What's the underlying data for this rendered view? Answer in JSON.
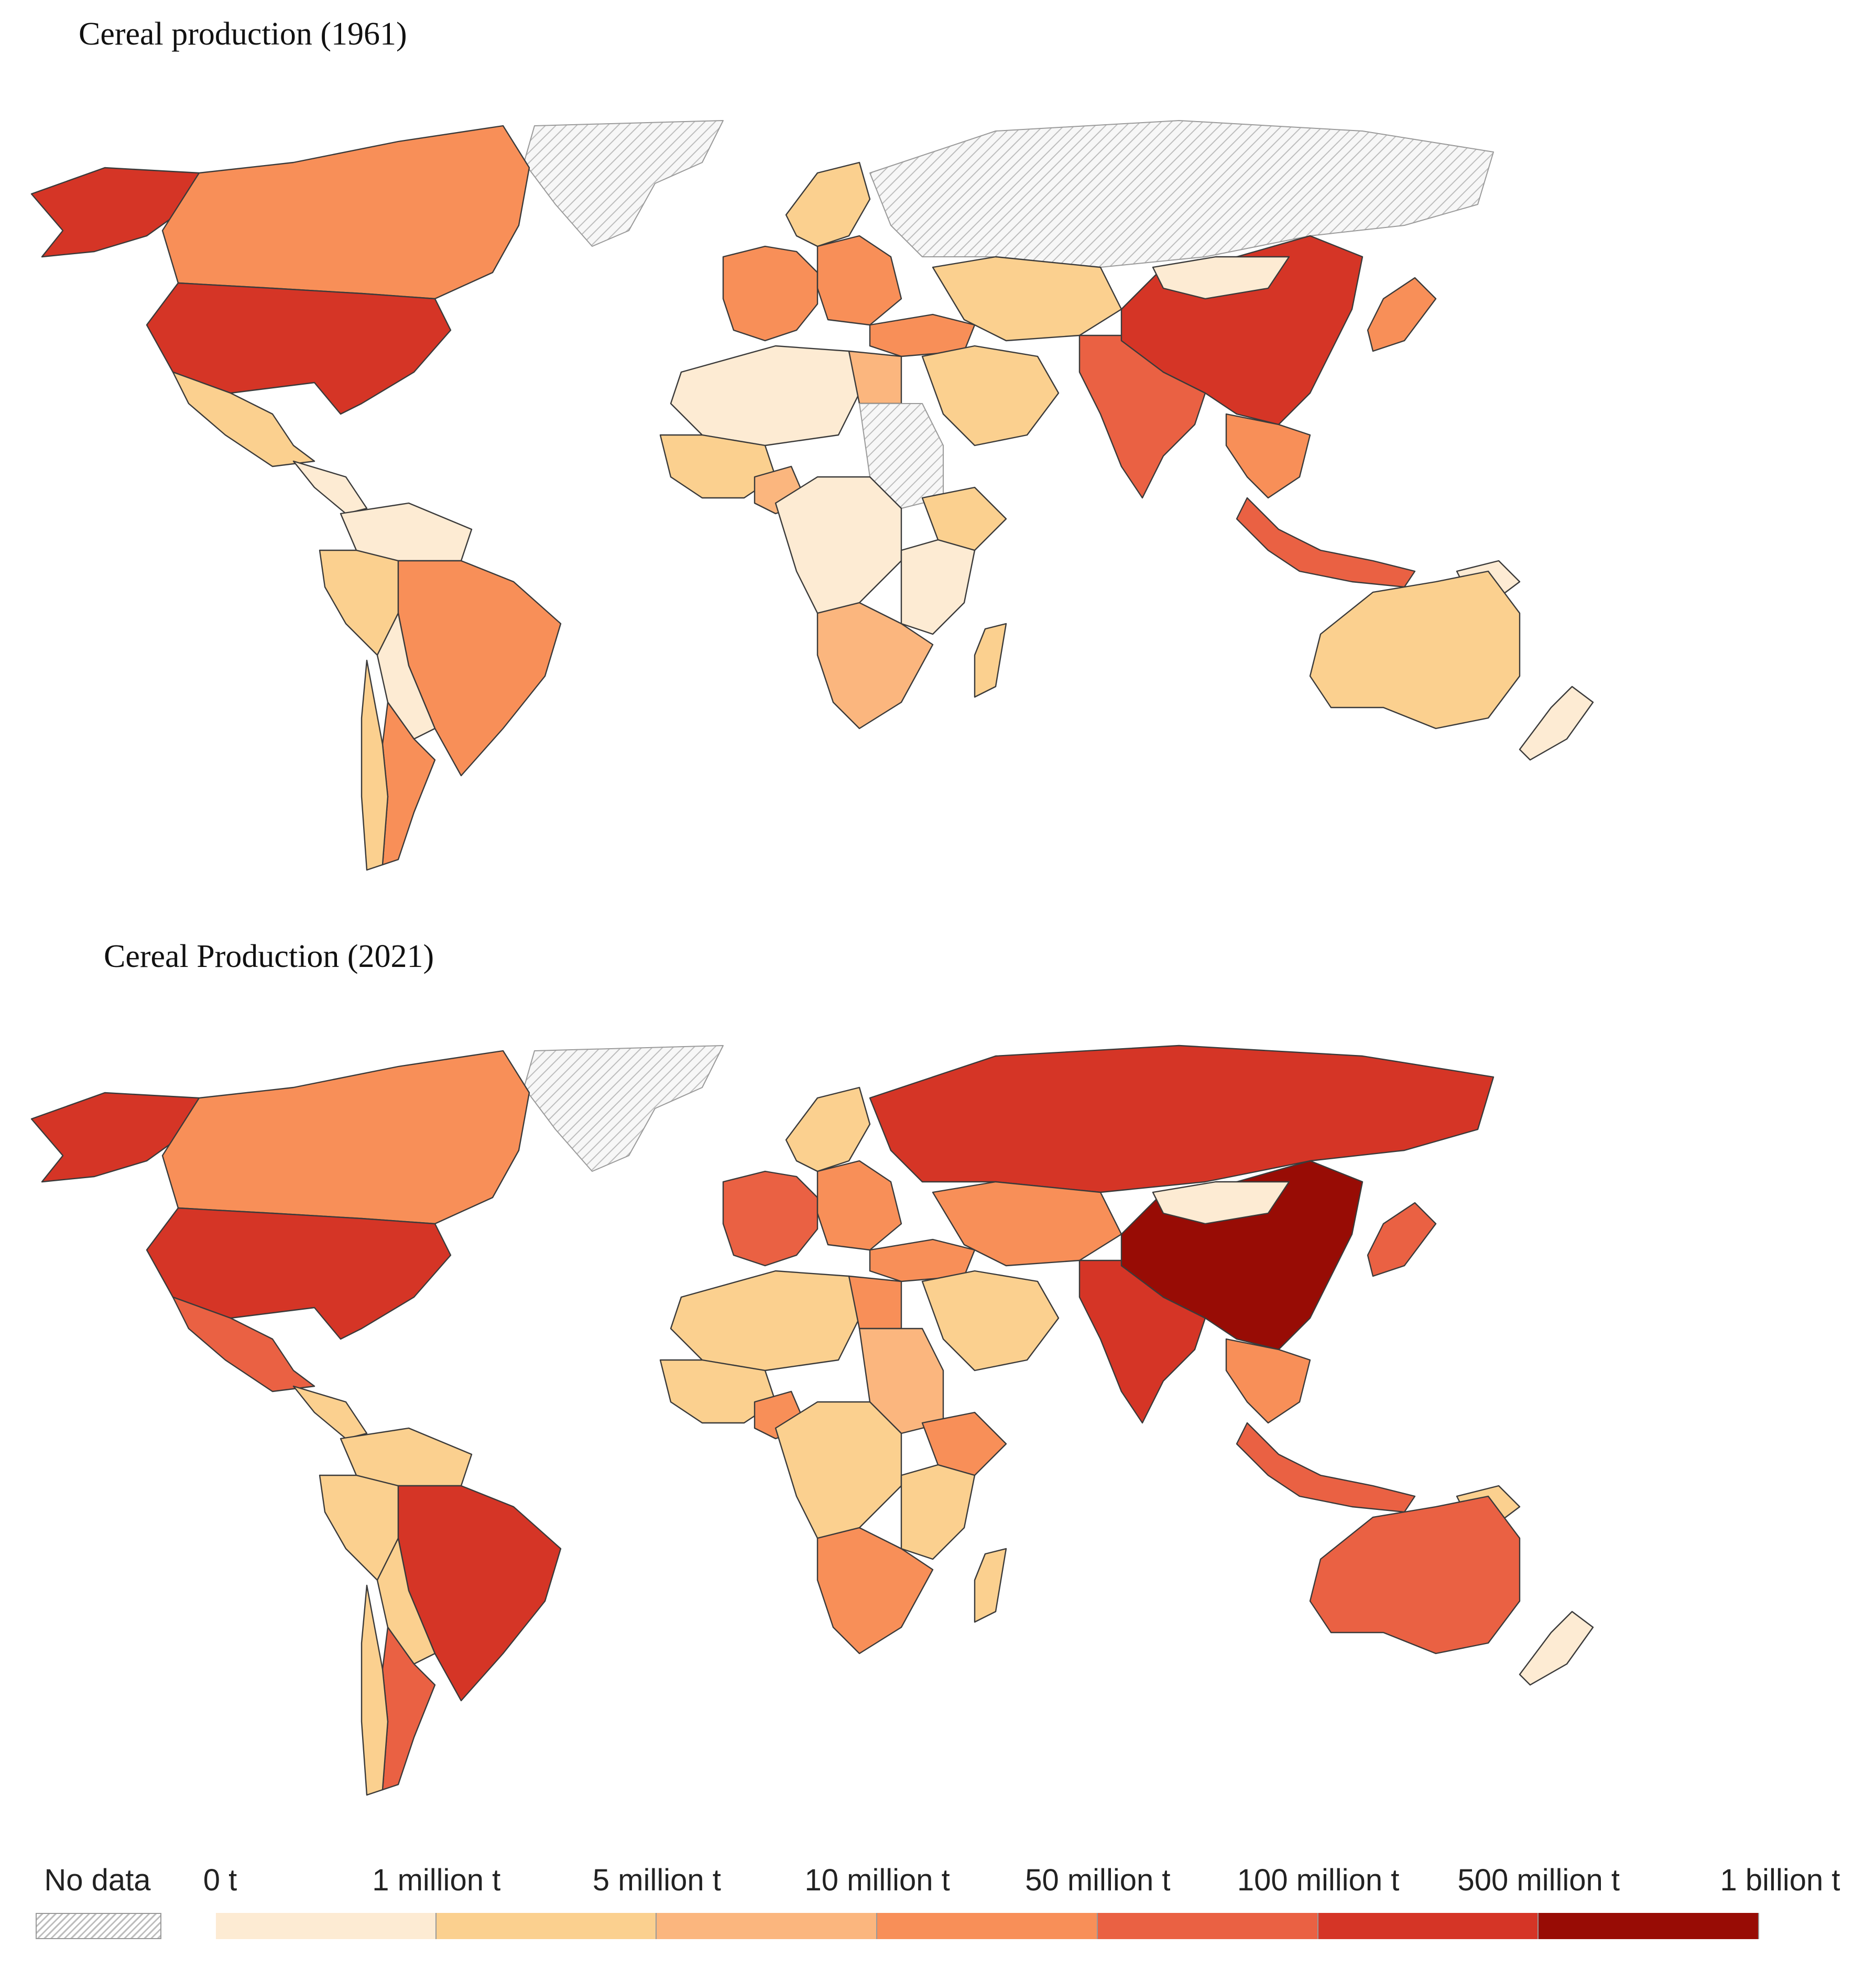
{
  "maps": [
    {
      "id": "1961",
      "title": "Cereal production (1961)"
    },
    {
      "id": "2021",
      "title": "Cereal Production (2021)"
    }
  ],
  "legend": {
    "no_data_label": "No data",
    "bins": [
      {
        "label": "0 t",
        "color": "#fdebd3"
      },
      {
        "label": "1 million t",
        "color": "#fbd08f"
      },
      {
        "label": "5 million t",
        "color": "#fbb67e"
      },
      {
        "label": "10 million t",
        "color": "#f88f58"
      },
      {
        "label": "50 million t",
        "color": "#ea6143"
      },
      {
        "label": "100 million t",
        "color": "#d53526"
      },
      {
        "label": "500 million t",
        "color": "#980c05"
      }
    ],
    "last_label": "1 billion t"
  },
  "regions": {
    "1961": {
      "greenland": "nodata",
      "alaska": "#d53526",
      "canada": "#f88f58",
      "usa": "#d53526",
      "mexico": "#fbd08f",
      "central_america": "#fdebd3",
      "colombia_venezuela": "#fdebd3",
      "peru_ecuador": "#fbd08f",
      "brazil": "#f88f58",
      "bolivia_paraguay": "#fdebd3",
      "argentina": "#f88f58",
      "chile": "#fbd08f",
      "west_europe": "#f88f58",
      "scandinavia": "#fbd08f",
      "russia_north": "nodata",
      "east_europe": "#f88f58",
      "north_africa": "#fdebd3",
      "egypt": "#fbb67e",
      "west_africa": "#fbd08f",
      "nigeria": "#fbb67e",
      "sudan_region": "nodata",
      "ethiopia": "#fbd08f",
      "central_africa": "#fdebd3",
      "east_africa": "#fdebd3",
      "southern_africa": "#fbb67e",
      "madagascar": "#fbd08f",
      "middle_east": "#fbd08f",
      "turkey": "#f88f58",
      "central_asia": "#fbd08f",
      "india": "#ea6143",
      "china": "#d53526",
      "mongolia": "#fdebd3",
      "southeast_asia": "#f88f58",
      "japan": "#f88f58",
      "indonesia": "#ea6143",
      "png": "#fdebd3",
      "australia": "#fbd08f",
      "new_zealand": "#fdebd3"
    },
    "2021": {
      "greenland": "nodata",
      "alaska": "#d53526",
      "canada": "#f88f58",
      "usa": "#d53526",
      "mexico": "#ea6143",
      "central_america": "#fbd08f",
      "colombia_venezuela": "#fbd08f",
      "peru_ecuador": "#fbd08f",
      "brazil": "#d53526",
      "bolivia_paraguay": "#fbd08f",
      "argentina": "#ea6143",
      "chile": "#fbd08f",
      "west_europe": "#ea6143",
      "scandinavia": "#fbd08f",
      "russia_north": "#d53526",
      "east_europe": "#f88f58",
      "north_africa": "#fbd08f",
      "egypt": "#f88f58",
      "west_africa": "#fbd08f",
      "nigeria": "#f88f58",
      "sudan_region": "#fbb67e",
      "ethiopia": "#f88f58",
      "central_africa": "#fbd08f",
      "east_africa": "#fbd08f",
      "southern_africa": "#f88f58",
      "madagascar": "#fbd08f",
      "middle_east": "#fbd08f",
      "turkey": "#f88f58",
      "central_asia": "#f88f58",
      "india": "#d53526",
      "china": "#980c05",
      "mongolia": "#fdebd3",
      "southeast_asia": "#f88f58",
      "japan": "#ea6143",
      "indonesia": "#ea6143",
      "png": "#fbd08f",
      "australia": "#ea6143",
      "new_zealand": "#fdebd3"
    }
  }
}
